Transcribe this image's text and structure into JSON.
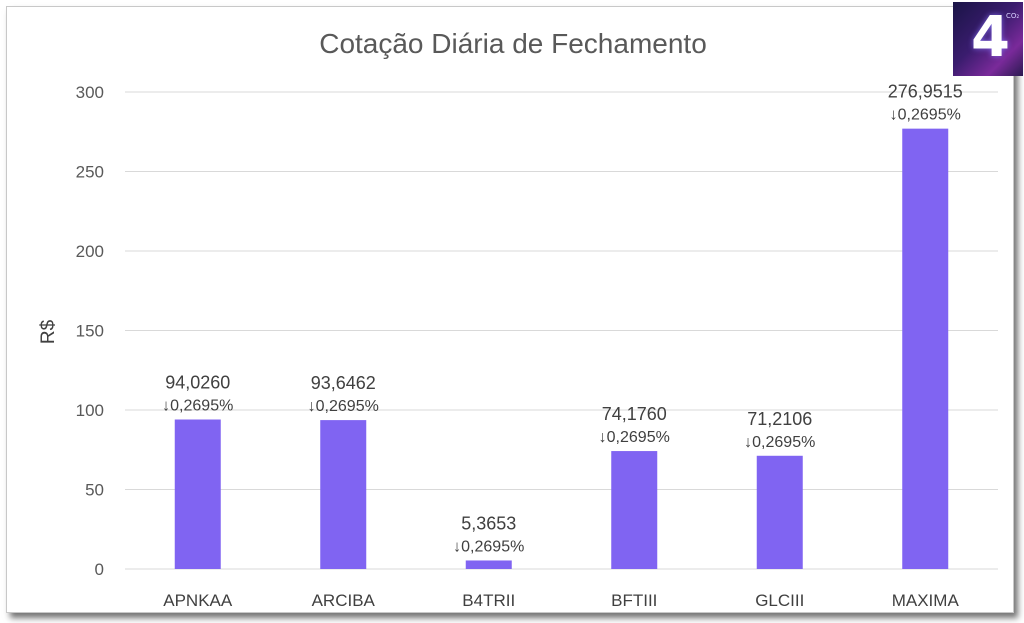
{
  "chart_data": {
    "type": "bar",
    "title": "Cotação Diária de Fechamento",
    "xlabel": "",
    "ylabel": "R$",
    "ylim": [
      0,
      300
    ],
    "yticks": [
      0,
      50,
      100,
      150,
      200,
      250,
      300
    ],
    "grid": true,
    "legend": "none",
    "bar_color": "#8064f2",
    "categories": [
      "APNKAA",
      "ARCIBA",
      "B4TRII",
      "BFTIII",
      "GLCIII",
      "MAXIMA"
    ],
    "values": [
      94.026,
      93.6462,
      5.3653,
      74.176,
      71.2106,
      276.9515
    ],
    "value_labels": [
      "94,0260",
      "93,6462",
      "5,3653",
      "74,1760",
      "71,2106",
      "276,9515"
    ],
    "change_labels": [
      "↓0,2695%",
      "↓0,2695%",
      "↓0,2695%",
      "↓0,2695%",
      "↓0,2695%",
      "↓0,2695%"
    ]
  },
  "logo": {
    "glyph": "4",
    "sub": "CO₂"
  }
}
